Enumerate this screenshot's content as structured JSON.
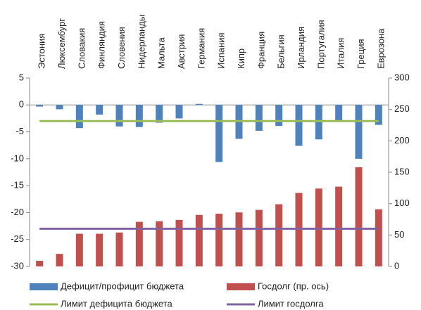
{
  "chart_data": {
    "type": "bar",
    "categories": [
      "Эстония",
      "Люксембург",
      "Словакия",
      "Финляндия",
      "Словения",
      "Нидерланды",
      "Мальта",
      "Австрия",
      "Германия",
      "Испания",
      "Кипр",
      "Франция",
      "Бельгия",
      "Ирландия",
      "Португалия",
      "Италия",
      "Греция",
      "Еврозона"
    ],
    "series": [
      {
        "name": "Дефицит/профицит бюджета",
        "color": "#4f81bd",
        "type": "bar",
        "values": [
          -0.3,
          -0.8,
          -4.3,
          -1.8,
          -4.0,
          -4.1,
          -3.3,
          -2.5,
          0.2,
          -10.6,
          -6.3,
          -4.8,
          -3.9,
          -7.6,
          -6.4,
          -3.0,
          -10.0,
          -3.7
        ]
      },
      {
        "name": "Госдолг (пр. ось)",
        "color": "#c0504d",
        "type": "bar",
        "axis": "y2",
        "values": [
          9,
          20,
          52,
          52,
          54,
          71,
          72,
          74,
          82,
          84,
          86,
          90,
          99,
          117,
          124,
          127,
          158,
          91
        ]
      },
      {
        "name": "Лимит дефицита бюджета",
        "color": "#9bbb59",
        "type": "line",
        "values": [
          -3,
          -3,
          -3,
          -3,
          -3,
          -3,
          -3,
          -3,
          -3,
          -3,
          -3,
          -3,
          -3,
          -3,
          -3,
          -3,
          -3,
          -3
        ]
      },
      {
        "name": "Лимит госдолга",
        "color": "#8064a2",
        "type": "line",
        "axis": "y2",
        "values": [
          60,
          60,
          60,
          60,
          60,
          60,
          60,
          60,
          60,
          60,
          60,
          60,
          60,
          60,
          60,
          60,
          60,
          60
        ]
      }
    ],
    "ylim": [
      -30,
      5
    ],
    "yticks": [
      5,
      0,
      -5,
      -10,
      -15,
      -20,
      -25,
      -30
    ],
    "y2lim": [
      0,
      300
    ],
    "y2ticks": [
      0,
      50,
      100,
      150,
      200,
      250,
      300
    ],
    "legend": "bottom"
  }
}
